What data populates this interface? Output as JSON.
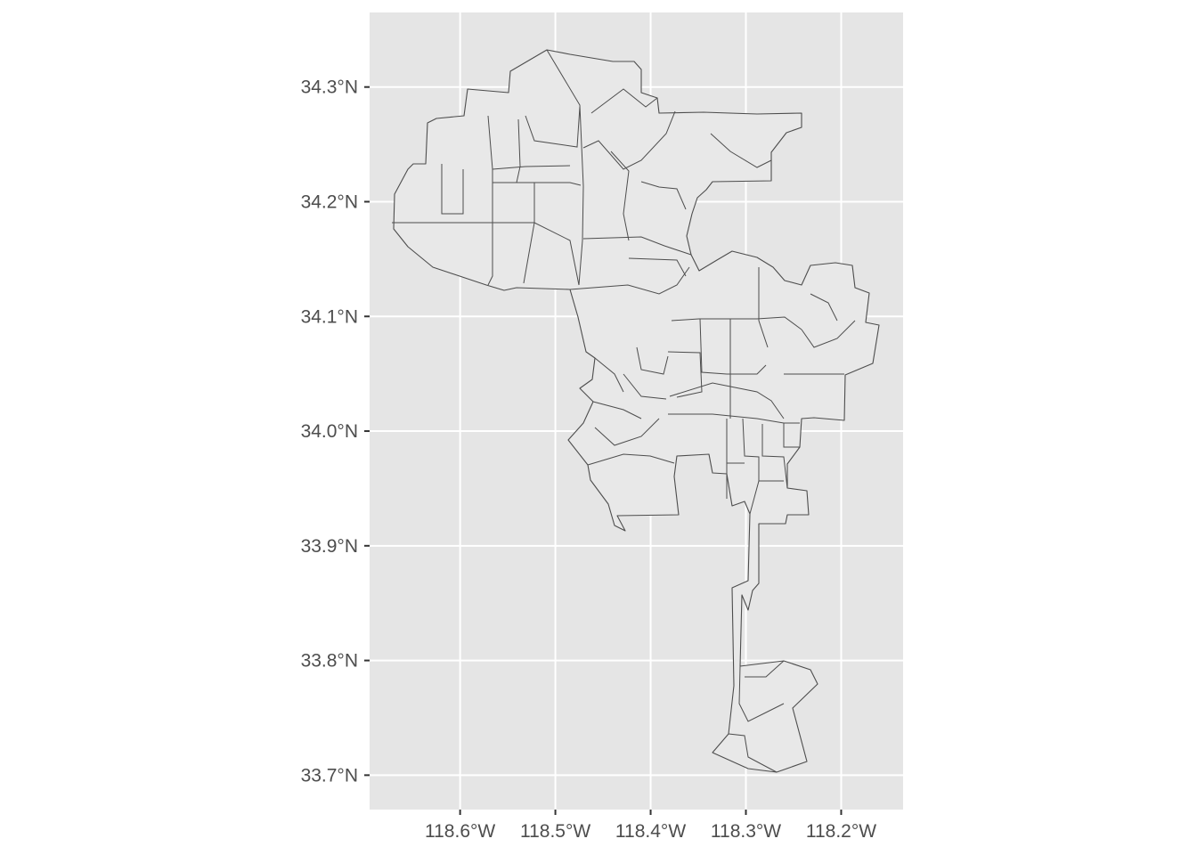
{
  "map": {
    "type": "choropleth-outline",
    "x_axis": {
      "ticks": [
        "118.6°W",
        "118.5°W",
        "118.4°W",
        "118.3°W",
        "118.2°W"
      ],
      "tick_values": [
        -118.6,
        -118.5,
        -118.4,
        -118.3,
        -118.2
      ],
      "range": [
        -118.695,
        -118.135
      ]
    },
    "y_axis": {
      "ticks": [
        "34.3°N",
        "34.2°N",
        "34.1°N",
        "34.0°N",
        "33.9°N",
        "33.8°N",
        "33.7°N"
      ],
      "tick_values": [
        34.3,
        34.2,
        34.1,
        34.0,
        33.9,
        33.8,
        33.7
      ],
      "range": [
        33.67,
        34.365
      ]
    },
    "grid": true,
    "colors": {
      "panel_background": "#e5e5e5",
      "grid": "#ffffff",
      "region_fill": "#e8e8e8",
      "region_border": "#4d4d4d",
      "tick_label": "#4d4d4d"
    }
  }
}
